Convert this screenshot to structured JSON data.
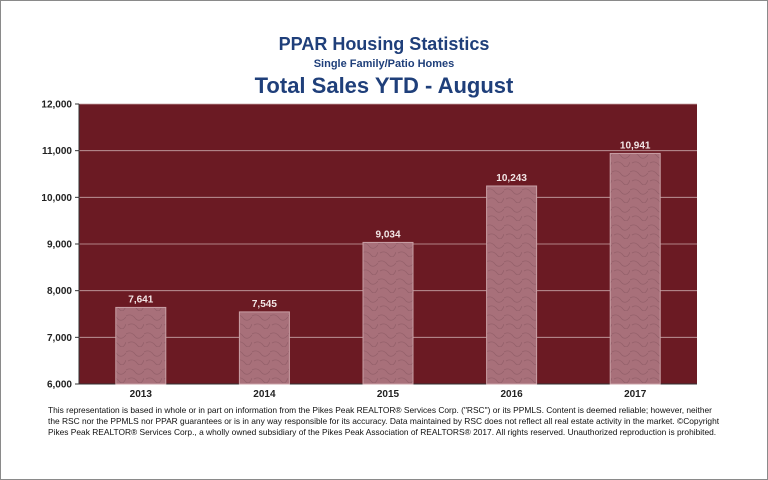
{
  "chart_data": {
    "type": "bar",
    "title": "PPAR Housing Statistics",
    "subtitle": "Single Family/Patio Homes",
    "heading": "Total Sales YTD - August",
    "categories": [
      "2013",
      "2014",
      "2015",
      "2016",
      "2017"
    ],
    "values": [
      7641,
      7545,
      9034,
      10243,
      10941
    ],
    "value_labels": [
      "7,641",
      "7,545",
      "9,034",
      "10,243",
      "10,941"
    ],
    "ylim": [
      6000,
      12000
    ],
    "yticks": [
      6000,
      7000,
      8000,
      9000,
      10000,
      11000,
      12000
    ],
    "ytick_labels": [
      "6,000",
      "7,000",
      "8,000",
      "9,000",
      "10,000",
      "11,000",
      "12,000"
    ],
    "xlabel": "",
    "ylabel": "",
    "grid": true,
    "colors": {
      "plot_background": "#6b1a23",
      "bar_fill": "#a8707a",
      "bar_edge": "#c9a0a6",
      "gridline": "#c8a4a8",
      "title": "#1f3f7a"
    }
  },
  "footnote": "This representation is based in whole or in part on information from the Pikes Peak REALTOR® Services Corp. (\"RSC\") or its PPMLS. Content is deemed reliable; however, neither the RSC nor the PPMLS nor PPAR guarantees or is in any way responsible for its accuracy. Data maintained by RSC does not reflect all real estate activity in the market. ©Copyright Pikes Peak REALTOR® Services Corp., a wholly owned subsidiary of the Pikes Peak Association of REALTORS® 2017. All rights reserved. Unauthorized reproduction is prohibited."
}
